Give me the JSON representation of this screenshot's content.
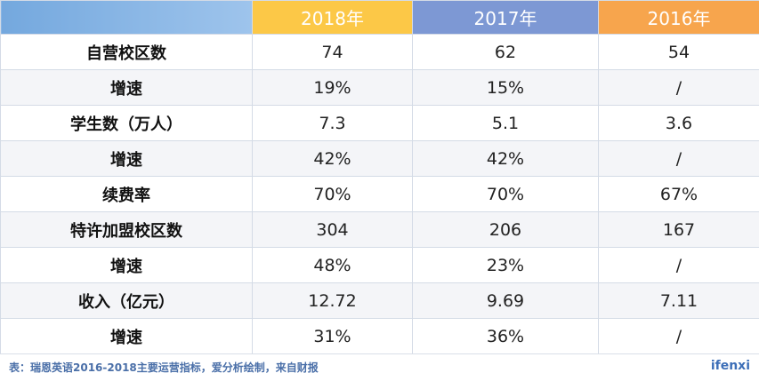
{
  "header": {
    "columns": [
      "2018年",
      "2017年",
      "2016年"
    ]
  },
  "rows": [
    {
      "label": "自营校区数",
      "values": [
        "74",
        "62",
        "54"
      ]
    },
    {
      "label": "增速",
      "values": [
        "19%",
        "15%",
        "/"
      ]
    },
    {
      "label": "学生数（万人）",
      "values": [
        "7.3",
        "5.1",
        "3.6"
      ]
    },
    {
      "label": "增速",
      "values": [
        "42%",
        "42%",
        "/"
      ]
    },
    {
      "label": "续费率",
      "values": [
        "70%",
        "70%",
        "67%"
      ]
    },
    {
      "label": "特许加盟校区数",
      "values": [
        "304",
        "206",
        "167"
      ]
    },
    {
      "label": "增速",
      "values": [
        "48%",
        "23%",
        "/"
      ]
    },
    {
      "label": "收入（亿元）",
      "values": [
        "12.72",
        "9.69",
        "7.11"
      ]
    },
    {
      "label": "增速",
      "values": [
        "31%",
        "36%",
        "/"
      ]
    }
  ],
  "footer": {
    "caption": "表：瑞恩英语2016-2018主要运营指标，爱分析绘制，来自财报",
    "brand": "ifenxi"
  },
  "colors": {
    "header_2018": "#fcc847",
    "header_2017": "#7d98d4",
    "header_2016": "#f7a54d",
    "caption_text": "#4a6fa8"
  }
}
